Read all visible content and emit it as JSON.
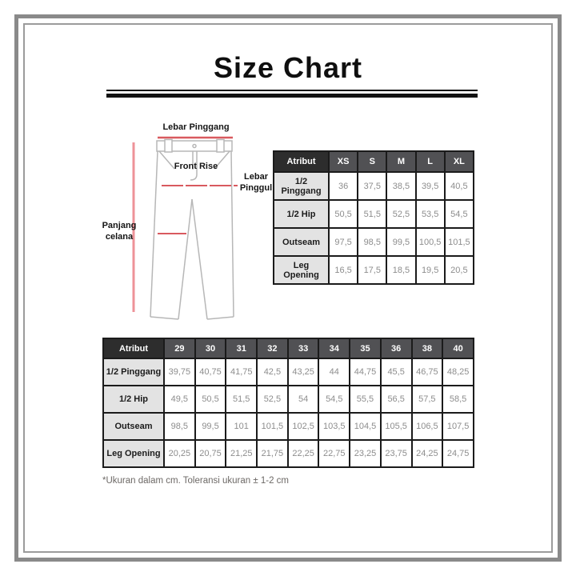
{
  "title": "Size Chart",
  "diagram": {
    "waist_label": "Lebar Pinggang",
    "front_rise_label": "Front Rise",
    "hip_label_line1": "Lebar",
    "hip_label_line2": "Pinggul",
    "length_label_line1": "Panjang",
    "length_label_line2": "celana"
  },
  "size_table": {
    "header": [
      "Atribut",
      "XS",
      "S",
      "M",
      "L",
      "XL"
    ],
    "rows": [
      {
        "label": "1/2 Pinggang",
        "values": [
          "36",
          "37,5",
          "38,5",
          "39,5",
          "40,5"
        ]
      },
      {
        "label": "1/2 Hip",
        "values": [
          "50,5",
          "51,5",
          "52,5",
          "53,5",
          "54,5"
        ]
      },
      {
        "label": "Outseam",
        "values": [
          "97,5",
          "98,5",
          "99,5",
          "100,5",
          "101,5"
        ]
      },
      {
        "label": "Leg Opening",
        "values": [
          "16,5",
          "17,5",
          "18,5",
          "19,5",
          "20,5"
        ]
      }
    ]
  },
  "number_table": {
    "header": [
      "Atribut",
      "29",
      "30",
      "31",
      "32",
      "33",
      "34",
      "35",
      "36",
      "38",
      "40"
    ],
    "rows": [
      {
        "label": "1/2 Pinggang",
        "values": [
          "39,75",
          "40,75",
          "41,75",
          "42,5",
          "43,25",
          "44",
          "44,75",
          "45,5",
          "46,75",
          "48,25"
        ]
      },
      {
        "label": "1/2 Hip",
        "values": [
          "49,5",
          "50,5",
          "51,5",
          "52,5",
          "54",
          "54,5",
          "55,5",
          "56,5",
          "57,5",
          "58,5"
        ]
      },
      {
        "label": "Outseam",
        "values": [
          "98,5",
          "99,5",
          "101",
          "101,5",
          "102,5",
          "103,5",
          "104,5",
          "105,5",
          "106,5",
          "107,5"
        ]
      },
      {
        "label": "Leg Opening",
        "values": [
          "20,25",
          "20,75",
          "21,25",
          "21,75",
          "22,25",
          "22,75",
          "23,25",
          "23,75",
          "24,25",
          "24,75"
        ]
      }
    ]
  },
  "footnote": "*Ukuran dalam cm. Toleransi ukuran ± 1-2 cm",
  "colors": {
    "frame_outer": "#8a8a8a",
    "frame_inner": "#9b9b9b",
    "header_corner_bg": "#2d2d2d",
    "header_size_bg": "#515154",
    "row_label_bg": "#e3e3e3",
    "value_text": "#8d8d8d",
    "table_border": "#1b1b1b",
    "pants_outline": "#b7b7b7",
    "measure_red": "#d95a5f",
    "measure_red_light": "#ee9298"
  }
}
